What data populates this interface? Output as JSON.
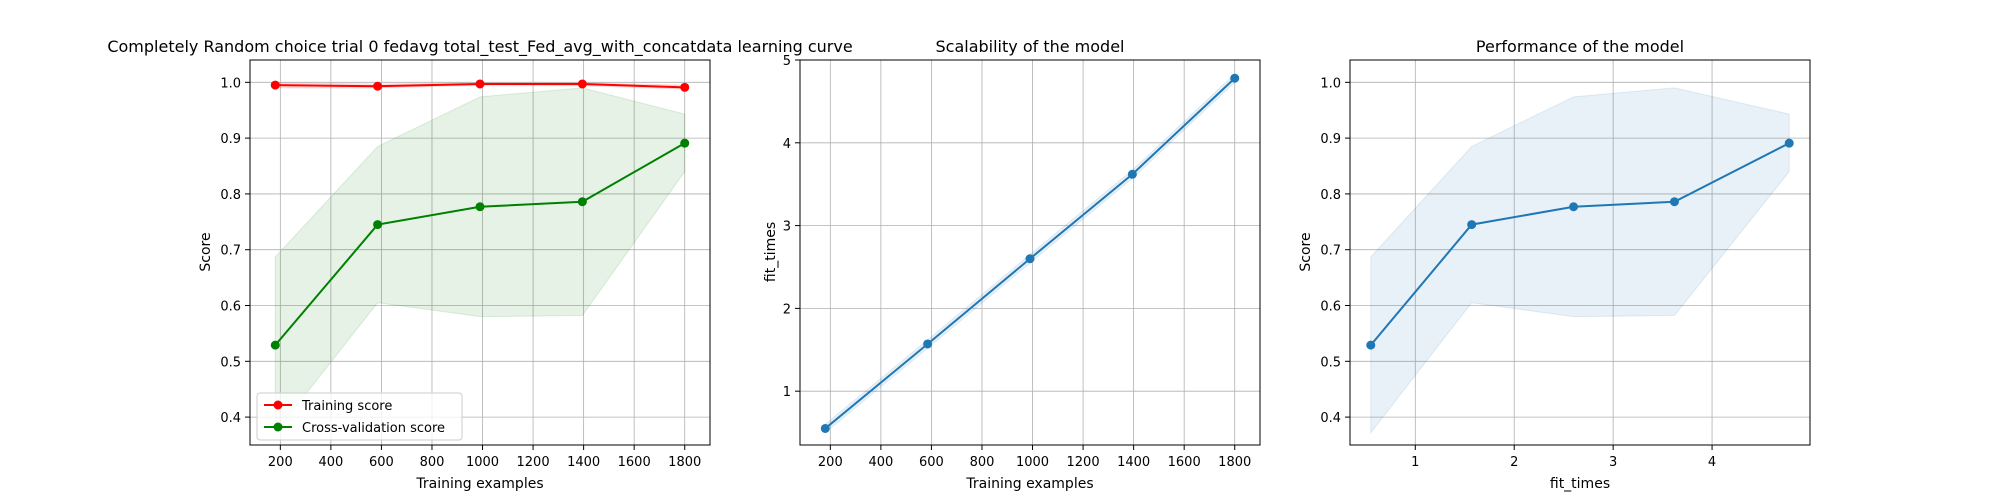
{
  "chart_data": [
    {
      "type": "line",
      "title": "Completely Random choice trial 0 fedavg total_test_Fed_avg_with_concatdata learning curve",
      "xlabel": "Training examples",
      "ylabel": "Score",
      "xlim": [
        80,
        1900
      ],
      "ylim": [
        0.35,
        1.04
      ],
      "xticks": [
        200,
        400,
        600,
        800,
        1000,
        1200,
        1400,
        1600,
        1800
      ],
      "xtick_labels": [
        "200",
        "400",
        "600",
        "800",
        "1000",
        "1200",
        "1400",
        "1600",
        "1800"
      ],
      "yticks": [
        0.4,
        0.5,
        0.6,
        0.7,
        0.8,
        0.9,
        1.0
      ],
      "ytick_labels": [
        "0.4",
        "0.5",
        "0.6",
        "0.7",
        "0.8",
        "0.9",
        "1.0"
      ],
      "grid": true,
      "legend_position": "lower-left",
      "x": [
        180,
        585,
        990,
        1395,
        1800
      ],
      "series": [
        {
          "name": "Training score",
          "color": "#ff0000",
          "values": [
            0.995,
            0.993,
            0.997,
            0.997,
            0.991
          ],
          "lower": [
            0.99,
            0.99,
            0.995,
            0.994,
            0.988
          ],
          "upper": [
            0.999,
            0.997,
            0.999,
            0.999,
            0.995
          ]
        },
        {
          "name": "Cross-validation score",
          "color": "#008000",
          "values": [
            0.529,
            0.745,
            0.777,
            0.786,
            0.891
          ],
          "lower": [
            0.372,
            0.605,
            0.58,
            0.582,
            0.84
          ],
          "upper": [
            0.687,
            0.885,
            0.974,
            0.99,
            0.943
          ]
        }
      ]
    },
    {
      "type": "line",
      "title": "Scalability of the model",
      "xlabel": "Training examples",
      "ylabel": "fit_times",
      "xlim": [
        80,
        1900
      ],
      "ylim": [
        0.35,
        5.0
      ],
      "xticks": [
        200,
        400,
        600,
        800,
        1000,
        1200,
        1400,
        1600,
        1800
      ],
      "xtick_labels": [
        "200",
        "400",
        "600",
        "800",
        "1000",
        "1200",
        "1400",
        "1600",
        "1800"
      ],
      "yticks": [
        1,
        2,
        3,
        4,
        5
      ],
      "ytick_labels": [
        "1",
        "2",
        "3",
        "4",
        "5"
      ],
      "grid": true,
      "x": [
        180,
        585,
        990,
        1395,
        1800
      ],
      "series": [
        {
          "color": "#1f77b4",
          "values": [
            0.55,
            1.57,
            2.6,
            3.62,
            4.78
          ],
          "lower": [
            0.5,
            1.52,
            2.55,
            3.57,
            4.73
          ],
          "upper": [
            0.6,
            1.62,
            2.65,
            3.67,
            4.83
          ]
        }
      ]
    },
    {
      "type": "line",
      "title": "Performance of the model",
      "xlabel": "fit_times",
      "ylabel": "Score",
      "xlim": [
        0.34,
        4.99
      ],
      "ylim": [
        0.35,
        1.04
      ],
      "xticks": [
        1,
        2,
        3,
        4
      ],
      "xtick_labels": [
        "1",
        "2",
        "3",
        "4"
      ],
      "yticks": [
        0.4,
        0.5,
        0.6,
        0.7,
        0.8,
        0.9,
        1.0
      ],
      "ytick_labels": [
        "0.4",
        "0.5",
        "0.6",
        "0.7",
        "0.8",
        "0.9",
        "1.0"
      ],
      "grid": true,
      "x": [
        0.55,
        1.57,
        2.6,
        3.62,
        4.78
      ],
      "series": [
        {
          "color": "#1f77b4",
          "values": [
            0.529,
            0.745,
            0.777,
            0.786,
            0.891
          ],
          "lower": [
            0.372,
            0.605,
            0.58,
            0.582,
            0.84
          ],
          "upper": [
            0.687,
            0.885,
            0.974,
            0.99,
            0.943
          ]
        }
      ]
    }
  ]
}
